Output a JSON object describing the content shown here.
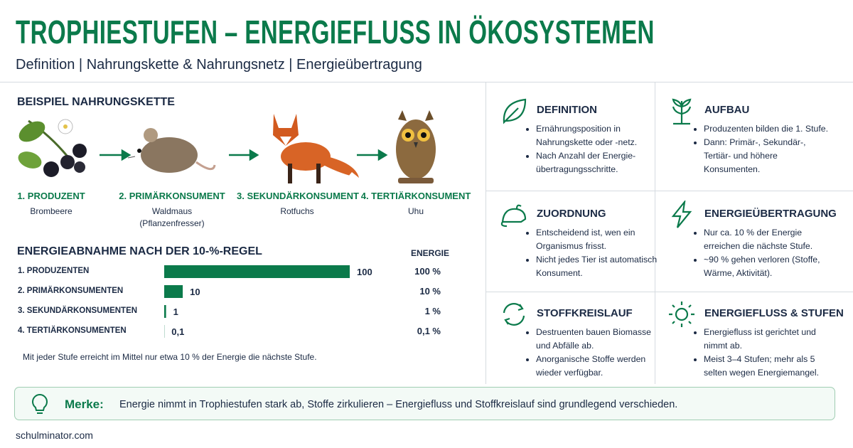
{
  "header": {
    "title": "TROPHIESTUFEN – ENERGIEFLUSS IN ÖKOSYSTEMEN",
    "subtitle": "Definition | Nahrungskette & Nahrungsnetz | Energieübertragung"
  },
  "food_chain": {
    "title": "BEISPIEL NAHRUNGSKETTE",
    "steps": [
      {
        "level": "1. PRODUZENT",
        "name": "Brombeere"
      },
      {
        "level": "2. PRIMÄRKONSUMENT",
        "name": "Waldmaus",
        "note": "(Pflanzenfresser)"
      },
      {
        "level": "3. SEKUNDÄRKONSUMENT",
        "name": "Rotfuchs"
      },
      {
        "level": "4. TERTIÄRKONSUMENT",
        "name": "Uhu"
      }
    ]
  },
  "energy": {
    "title": "ENERGIEABNAHME NACH DER 10-%-REGEL",
    "column_header": "ENERGIE",
    "categories": [
      "1. PRODUZENTEN",
      "2. PRIMÄRKONSUMENTEN",
      "3. SEKUNDÄRKONSUMENTEN",
      "4. TERTIÄRKONSUMENTEN"
    ],
    "values": [
      100,
      10,
      1,
      0.1
    ],
    "value_labels": [
      "100",
      "10",
      "1",
      "0,1"
    ],
    "percents": [
      "100 %",
      "10 %",
      "1 %",
      "0,1 %"
    ],
    "color": "#0b7a4b",
    "note": "Mit jeder Stufe erreicht im Mittel nur etwa 10 % der Energie die nächste Stufe."
  },
  "cards": [
    {
      "title": "DEFINITION",
      "bullets": [
        "Ernährungsposition in Nahrungskette oder -netz.",
        "Nach Anzahl der Energie-übertragungsschritte."
      ]
    },
    {
      "title": "AUFBAU",
      "bullets": [
        "Produzenten bilden die 1. Stufe.",
        "Dann: Primär-, Sekundär-, Tertiär- und höhere Konsumenten."
      ]
    },
    {
      "title": "ZUORDNUNG",
      "bullets": [
        "Entscheidend ist, wen ein Organismus frisst.",
        "Nicht jedes Tier ist automatisch Konsument."
      ]
    },
    {
      "title": "ENERGIEÜBERTRAGUNG",
      "bullets": [
        "Nur ca. 10 % der Energie erreichen die nächste Stufe.",
        "~90 % gehen verloren (Stoffe, Wärme, Aktivität)."
      ]
    },
    {
      "title": "STOFFKREISLAUF",
      "bullets": [
        "Destruenten bauen Biomasse und Abfälle ab.",
        "Anorganische Stoffe werden wieder verfügbar."
      ]
    },
    {
      "title": "ENERGIEFLUSS & STUFEN",
      "bullets": [
        "Energiefluss ist gerichtet und nimmt ab.",
        "Meist 3–4 Stufen; mehr als 5 selten wegen Energiemangel."
      ]
    }
  ],
  "tip": {
    "label": "Merke:",
    "text": "Energie nimmt in Trophiestufen stark ab, Stoffe zirkulieren – Energiefluss und Stoffkreislauf sind grundlegend verschieden."
  },
  "footer": "schulminator.com"
}
